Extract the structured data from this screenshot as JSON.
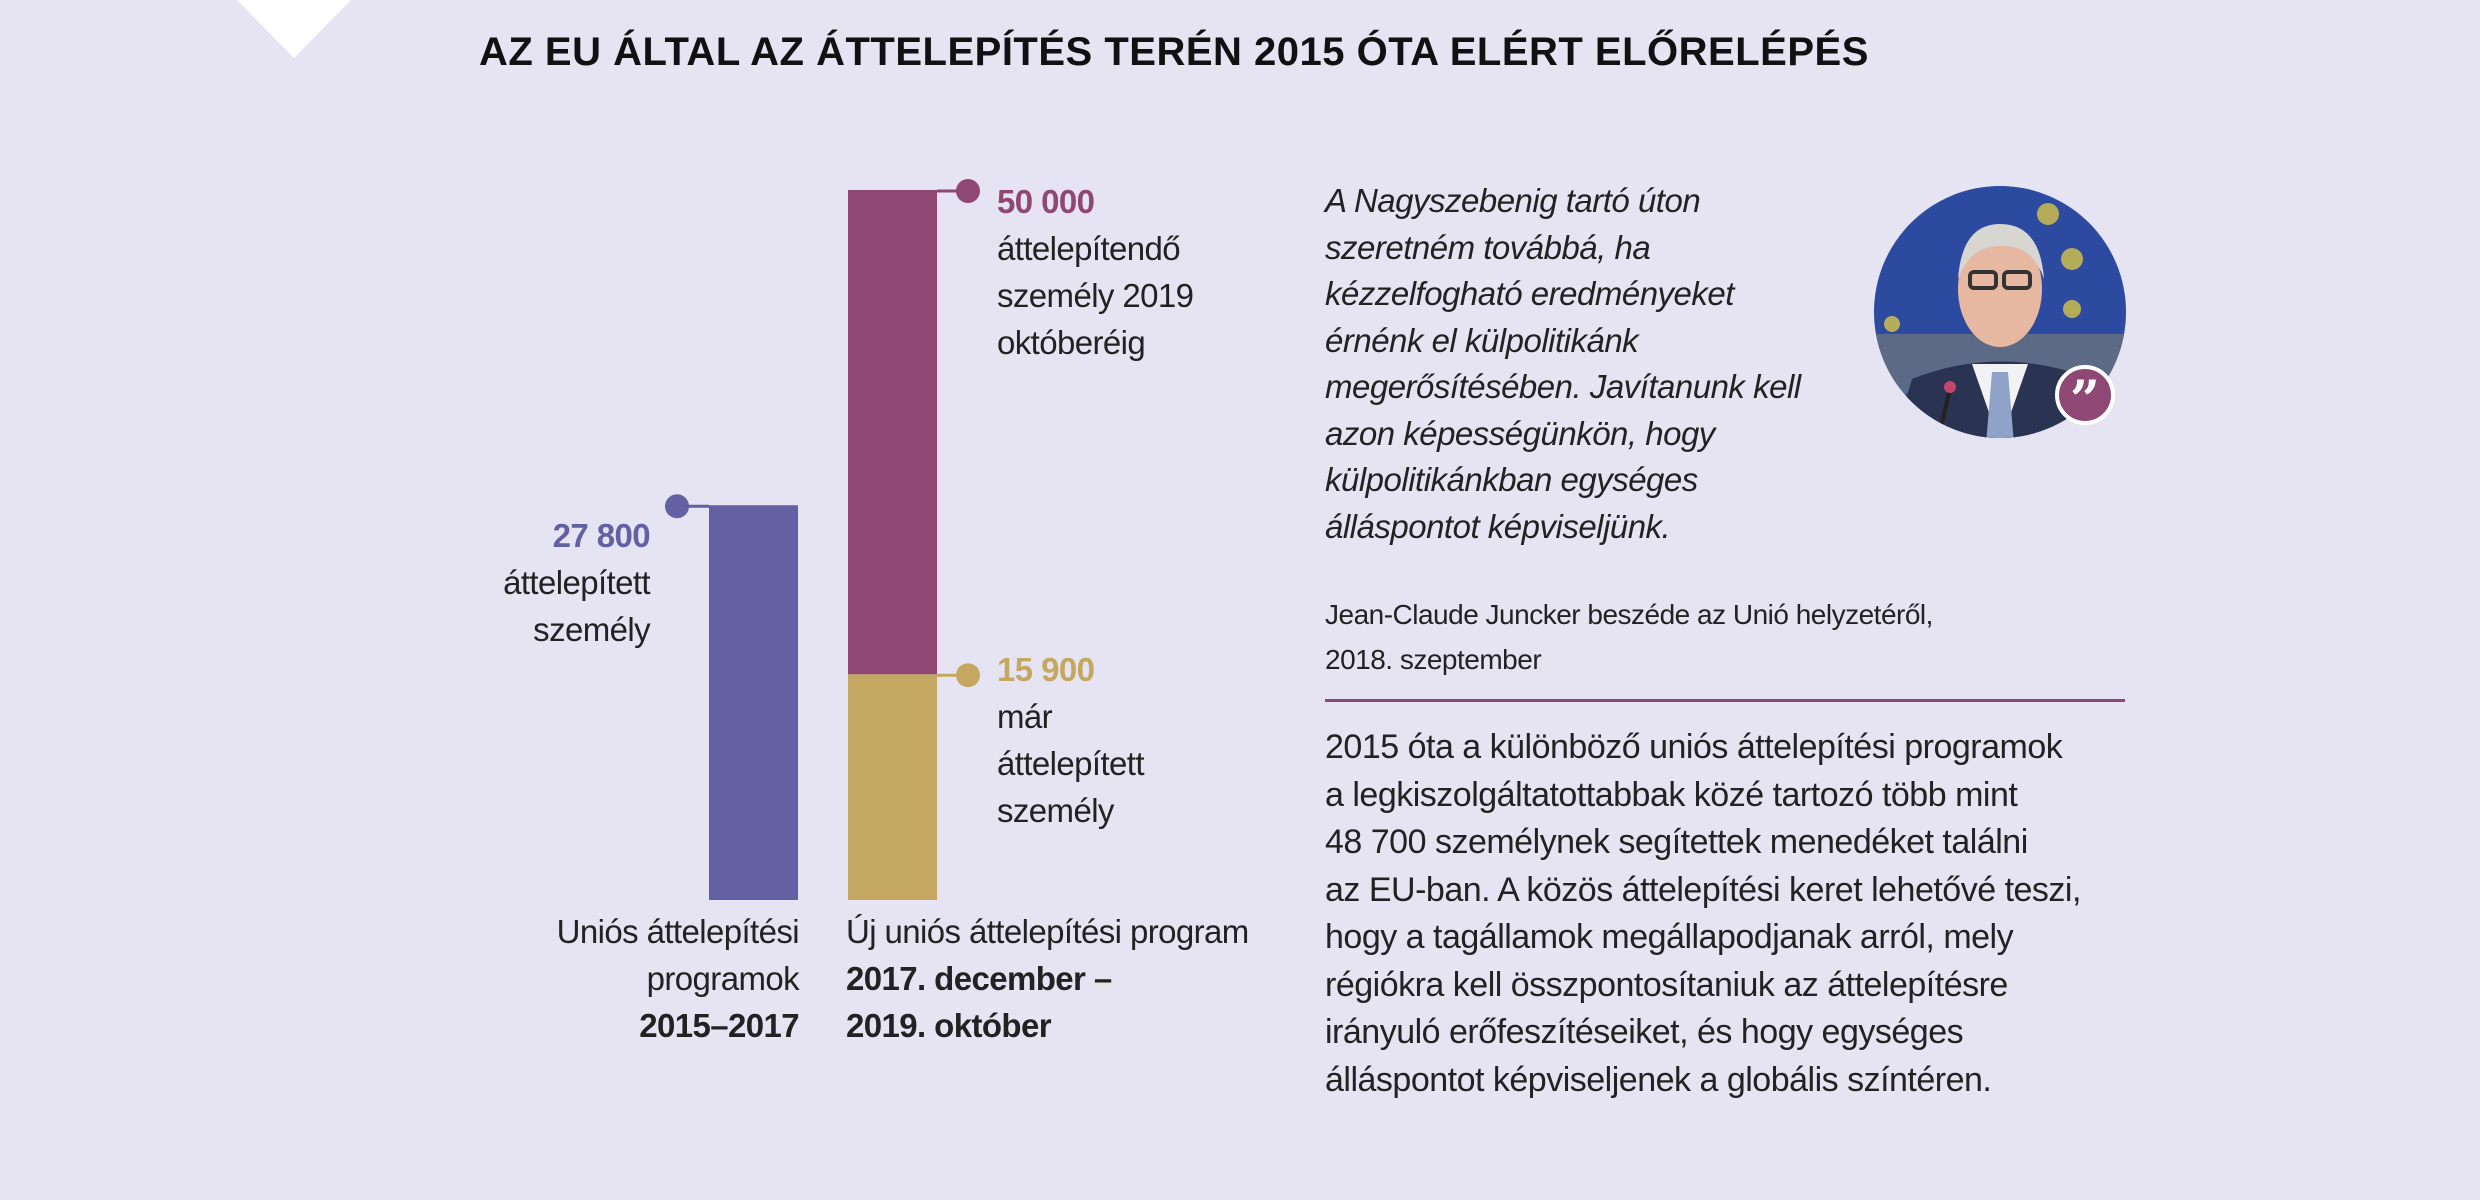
{
  "title": "AZ EU ÁLTAL AZ ÁTTELEPÍTÉS TERÉN 2015 ÓTA ELÉRT ELŐRELÉPÉS",
  "colors": {
    "background": "#e6e4f2",
    "bar_2015": "#6360a4",
    "bar_target": "#8f4773",
    "bar_done": "#c4a862",
    "divider": "#8f4773"
  },
  "chart_data": {
    "type": "bar",
    "stacked": true,
    "categories": [
      "Uniós áttelepítési programok 2015–2017",
      "Új uniós áttelepítési program 2017. december – 2019. október"
    ],
    "series": [
      {
        "name": "áttelepített személy",
        "values": [
          27800,
          null
        ],
        "color": "#6360a4"
      },
      {
        "name": "már áttelepített személy",
        "values": [
          null,
          15900
        ],
        "color": "#c4a862"
      },
      {
        "name": "áttelepítendő személy 2019 októberéig",
        "values": [
          null,
          34100
        ],
        "color": "#8f4773"
      }
    ],
    "totals": [
      27800,
      50000
    ],
    "ylim": [
      0,
      50000
    ],
    "grid": false,
    "labels": {
      "bar1_value": "27 800",
      "bar1_text": [
        "áttelepített",
        "személy"
      ],
      "bar2_top_value": "50 000",
      "bar2_top_text": [
        "áttelepítendő",
        "személy 2019",
        "októberéig"
      ],
      "bar2_bottom_value": "15 900",
      "bar2_bottom_text": [
        "már",
        "áttelepített",
        "személy"
      ]
    },
    "category_labels": [
      {
        "lines": [
          "Uniós áttelepítési",
          "programok"
        ],
        "bold": "2015–2017"
      },
      {
        "lines": [
          "Új uniós áttelepítési program"
        ],
        "bold_lines": [
          "2017. december –",
          "2019. október"
        ]
      }
    ]
  },
  "quote": {
    "lines": [
      "A Nagyszebenig tartó úton",
      "szeretném továbbá, ha",
      "kézzelfogható eredményeket",
      "érnénk el külpolitikánk",
      "megerősítésében. Javítanunk kell",
      "azon képességünkön, hogy",
      "külpolitikánkban egységes",
      "álláspontot képviseljünk."
    ],
    "attribution": [
      "Jean-Claude Juncker beszéde az Unió helyzetéről,",
      "2018. szeptember"
    ],
    "icon": "quote-mark-icon"
  },
  "paragraph": [
    "2015 óta a különböző uniós áttelepítési programok",
    "a legkiszolgáltatottabbak közé tartozó több mint",
    "48 700 személynek segítettek menedéket találni",
    "az EU-ban. A közös áttelepítési keret lehetővé teszi,",
    "hogy a tagállamok megállapodjanak arról, mely",
    "régiókra kell összpontosítaniuk az áttelepítésre",
    "irányuló erőfeszítéseiket, és hogy egységes",
    "álláspontot képviseljenek a globális színtéren."
  ]
}
